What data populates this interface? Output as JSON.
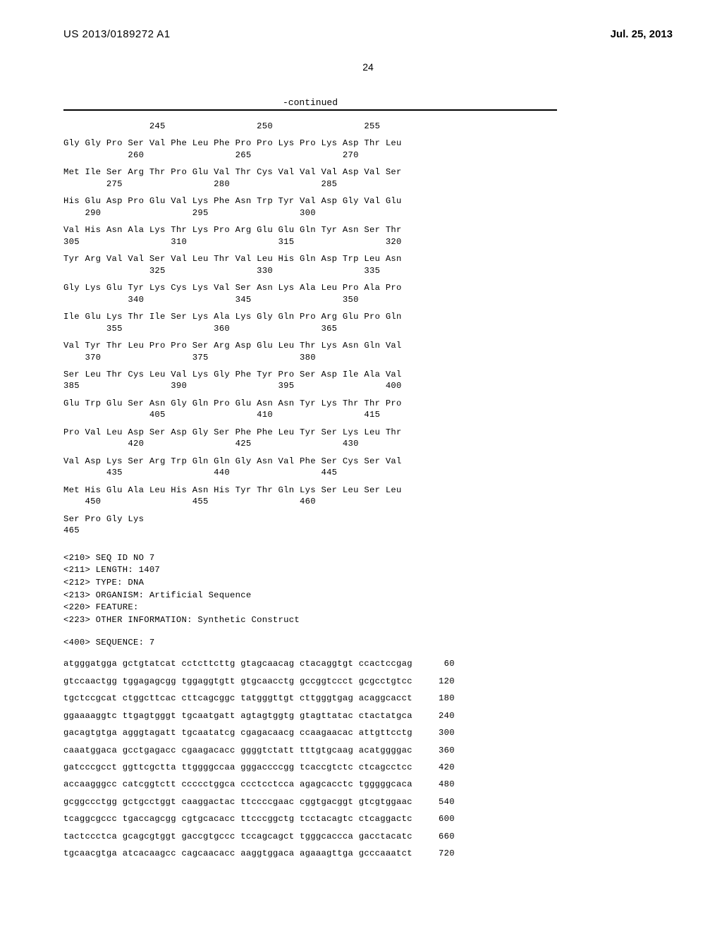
{
  "header": {
    "publication_number": "US 2013/0189272 A1",
    "publication_date": "Jul. 25, 2013"
  },
  "page_number": "24",
  "continued_label": "-continued",
  "protein": {
    "first_num_row": "                245                 250                 255",
    "blocks": [
      {
        "aa": "Gly Gly Pro Ser Val Phe Leu Phe Pro Pro Lys Pro Lys Asp Thr Leu",
        "nums": "            260                 265                 270"
      },
      {
        "aa": "Met Ile Ser Arg Thr Pro Glu Val Thr Cys Val Val Val Asp Val Ser",
        "nums": "        275                 280                 285"
      },
      {
        "aa": "His Glu Asp Pro Glu Val Lys Phe Asn Trp Tyr Val Asp Gly Val Glu",
        "nums": "    290                 295                 300"
      },
      {
        "aa": "Val His Asn Ala Lys Thr Lys Pro Arg Glu Glu Gln Tyr Asn Ser Thr",
        "nums": "305                 310                 315                 320"
      },
      {
        "aa": "Tyr Arg Val Val Ser Val Leu Thr Val Leu His Gln Asp Trp Leu Asn",
        "nums": "                325                 330                 335"
      },
      {
        "aa": "Gly Lys Glu Tyr Lys Cys Lys Val Ser Asn Lys Ala Leu Pro Ala Pro",
        "nums": "            340                 345                 350"
      },
      {
        "aa": "Ile Glu Lys Thr Ile Ser Lys Ala Lys Gly Gln Pro Arg Glu Pro Gln",
        "nums": "        355                 360                 365"
      },
      {
        "aa": "Val Tyr Thr Leu Pro Pro Ser Arg Asp Glu Leu Thr Lys Asn Gln Val",
        "nums": "    370                 375                 380"
      },
      {
        "aa": "Ser Leu Thr Cys Leu Val Lys Gly Phe Tyr Pro Ser Asp Ile Ala Val",
        "nums": "385                 390                 395                 400"
      },
      {
        "aa": "Glu Trp Glu Ser Asn Gly Gln Pro Glu Asn Asn Tyr Lys Thr Thr Pro",
        "nums": "                405                 410                 415"
      },
      {
        "aa": "Pro Val Leu Asp Ser Asp Gly Ser Phe Phe Leu Tyr Ser Lys Leu Thr",
        "nums": "            420                 425                 430"
      },
      {
        "aa": "Val Asp Lys Ser Arg Trp Gln Gln Gly Asn Val Phe Ser Cys Ser Val",
        "nums": "        435                 440                 445"
      },
      {
        "aa": "Met His Glu Ala Leu His Asn His Tyr Thr Gln Lys Ser Leu Ser Leu",
        "nums": "    450                 455                 460"
      },
      {
        "aa": "Ser Pro Gly Lys",
        "nums": "465"
      }
    ]
  },
  "meta": {
    "lines": [
      "<210> SEQ ID NO 7",
      "<211> LENGTH: 1407",
      "<212> TYPE: DNA",
      "<213> ORGANISM: Artificial Sequence",
      "<220> FEATURE:",
      "<223> OTHER INFORMATION: Synthetic Construct"
    ],
    "sequence_label": "<400> SEQUENCE: 7"
  },
  "dna": [
    {
      "seq": "atgggatgga gctgtatcat cctcttcttg gtagcaacag ctacaggtgt ccactccgag",
      "n": "60"
    },
    {
      "seq": "gtccaactgg tggagagcgg tggaggtgtt gtgcaacctg gccggtccct gcgcctgtcc",
      "n": "120"
    },
    {
      "seq": "tgctccgcat ctggcttcac cttcagcggc tatgggttgt cttgggtgag acaggcacct",
      "n": "180"
    },
    {
      "seq": "ggaaaaggtc ttgagtgggt tgcaatgatt agtagtggtg gtagttatac ctactatgca",
      "n": "240"
    },
    {
      "seq": "gacagtgtga agggtagatt tgcaatatcg cgagacaacg ccaagaacac attgttcctg",
      "n": "300"
    },
    {
      "seq": "caaatggaca gcctgagacc cgaagacacc ggggtctatt tttgtgcaag acatggggac",
      "n": "360"
    },
    {
      "seq": "gatcccgcct ggttcgctta ttggggccaa gggaccccgg tcaccgtctc ctcagcctcc",
      "n": "420"
    },
    {
      "seq": "accaagggcc catcggtctt ccccctggca ccctcctcca agagcacctc tgggggcaca",
      "n": "480"
    },
    {
      "seq": "gcggccctgg gctgcctggt caaggactac ttccccgaac cggtgacggt gtcgtggaac",
      "n": "540"
    },
    {
      "seq": "tcaggcgccc tgaccagcgg cgtgcacacc ttcccggctg tcctacagtc ctcaggactc",
      "n": "600"
    },
    {
      "seq": "tactccctca gcagcgtggt gaccgtgccc tccagcagct tgggcaccca gacctacatc",
      "n": "660"
    },
    {
      "seq": "tgcaacgtga atcacaagcc cagcaacacc aaggtggaca agaaagttga gcccaaatct",
      "n": "720"
    }
  ]
}
